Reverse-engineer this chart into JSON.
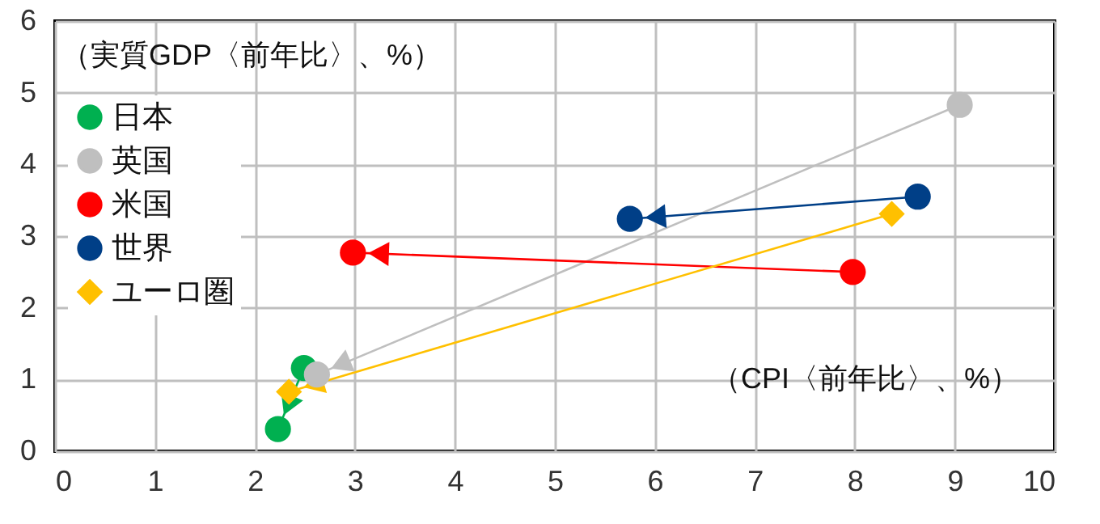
{
  "chart_data": {
    "type": "line",
    "xlabel": "（CPI〈前年比〉、%）",
    "ylabel": "（実質GDP〈前年比〉、%）",
    "series": [
      {
        "name": "日本",
        "color": "#00b050",
        "marker": "circle",
        "x": [
          2.49,
          2.23
        ],
        "values": [
          1.16,
          0.31
        ]
      },
      {
        "name": "英国",
        "color": "#bfbfbf",
        "marker": "circle",
        "x": [
          9.05,
          2.62
        ],
        "values": [
          4.83,
          1.07
        ]
      },
      {
        "name": "米国",
        "color": "#ff0000",
        "marker": "circle",
        "x": [
          7.98,
          2.98
        ],
        "values": [
          2.5,
          2.77
        ]
      },
      {
        "name": "世界",
        "color": "#003f87",
        "marker": "circle",
        "x": [
          8.63,
          5.75
        ],
        "values": [
          3.55,
          3.24
        ]
      },
      {
        "name": "ユーロ圏",
        "color": "#ffc000",
        "marker": "diamond",
        "x": [
          8.37,
          2.34
        ],
        "values": [
          3.31,
          0.83
        ]
      }
    ],
    "xlim": [
      0,
      10
    ],
    "xticks": [
      0,
      1,
      2,
      3,
      4,
      5,
      6,
      7,
      8,
      9,
      10
    ],
    "ylim": [
      0,
      6
    ],
    "yticks": [
      0,
      1,
      2,
      3,
      4,
      5,
      6
    ],
    "grid": true,
    "legend": "top left"
  }
}
